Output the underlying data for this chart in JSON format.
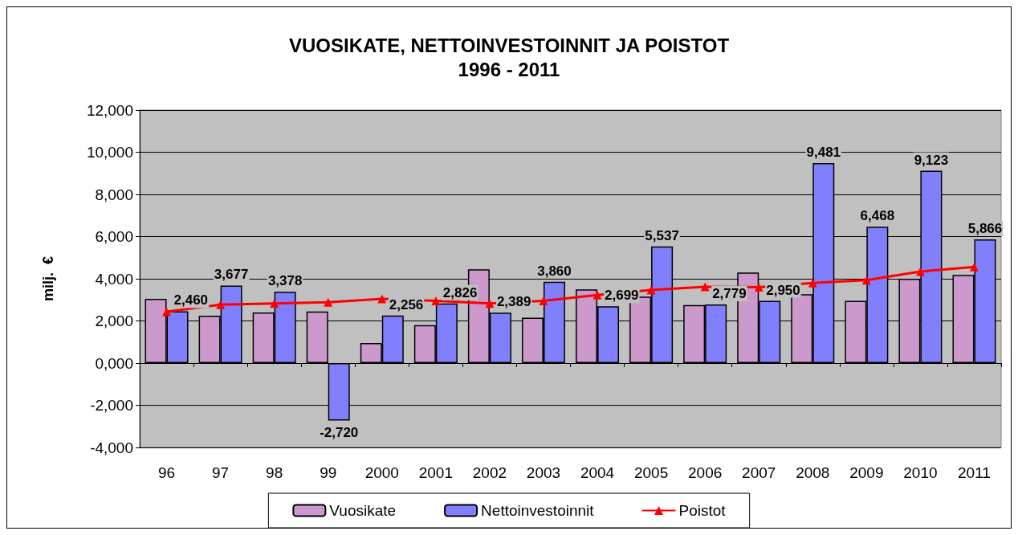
{
  "chart_data": {
    "type": "bar",
    "title": "VUOSIKATE, NETTOINVESTOINNIT JA POISTOT",
    "subtitle": "1996 - 2011",
    "ylabel": "milj.  €",
    "categories": [
      "96",
      "97",
      "98",
      "99",
      "2000",
      "2001",
      "2002",
      "2003",
      "2004",
      "2005",
      "2006",
      "2007",
      "2008",
      "2009",
      "2010",
      "2011"
    ],
    "series": [
      {
        "name": "Vuosikate",
        "type": "bar",
        "color": "#cc99cc",
        "values": [
          3050,
          2250,
          2400,
          2450,
          950,
          1800,
          4450,
          2150,
          3500,
          3150,
          2750,
          4300,
          3270,
          2950,
          4000,
          4180
        ]
      },
      {
        "name": "Nettoinvestoinnit",
        "type": "bar",
        "color": "#8080ff",
        "values": [
          2460,
          3677,
          3378,
          -2720,
          2256,
          2826,
          2389,
          3860,
          2699,
          5537,
          2779,
          2950,
          9481,
          6468,
          9123,
          5866
        ],
        "value_labels": [
          "2,460",
          "3,677",
          "3,378",
          "-2,720",
          "2,256",
          "2,826",
          "2,389",
          "3,860",
          "2,699",
          "5,537",
          "2,779",
          "2,950",
          "9,481",
          "6,468",
          "9,123",
          "5,866"
        ]
      },
      {
        "name": "Poistot",
        "type": "line",
        "color": "#ff0000",
        "values": [
          2440,
          2770,
          2830,
          2890,
          3050,
          2950,
          2830,
          2950,
          3230,
          3470,
          3620,
          3600,
          3800,
          3930,
          4340,
          4560
        ]
      }
    ],
    "ylim": [
      -4000,
      12000
    ],
    "yticks": [
      {
        "value": -4000,
        "label": "-4,000"
      },
      {
        "value": -2000,
        "label": "-2,000"
      },
      {
        "value": 0,
        "label": "0,000"
      },
      {
        "value": 2000,
        "label": "2,000"
      },
      {
        "value": 4000,
        "label": "4,000"
      },
      {
        "value": 6000,
        "label": "6,000"
      },
      {
        "value": 8000,
        "label": "8,000"
      },
      {
        "value": 10000,
        "label": "10,000"
      },
      {
        "value": 12000,
        "label": "12,000"
      }
    ],
    "grid": "y",
    "legend": "bottom",
    "marker": "triangle",
    "line_style": "solid"
  }
}
